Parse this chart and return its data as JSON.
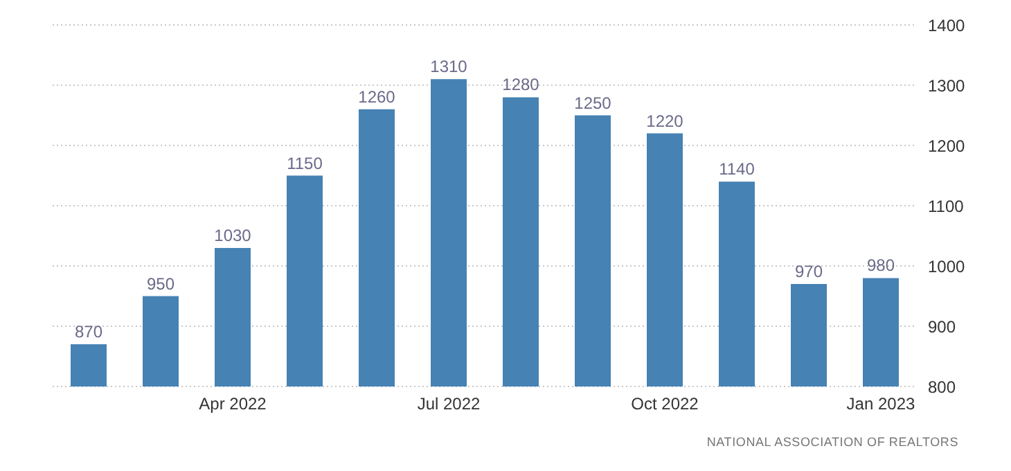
{
  "chart_data": {
    "type": "bar",
    "categories": [
      null,
      null,
      "Apr 2022",
      null,
      null,
      "Jul 2022",
      null,
      null,
      "Oct 2022",
      null,
      null,
      "Jan 2023"
    ],
    "values": [
      870,
      950,
      1030,
      1150,
      1260,
      1310,
      1280,
      1250,
      1220,
      1140,
      970,
      980
    ],
    "color": "#4682b4",
    "ylim": [
      800,
      1400
    ],
    "yticks": [
      800,
      900,
      1000,
      1100,
      1200,
      1300,
      1400
    ],
    "grid": "y",
    "data_labels": true,
    "legend": false,
    "annotations": [
      "NATIONAL ASSOCIATION OF REALTORS"
    ]
  }
}
